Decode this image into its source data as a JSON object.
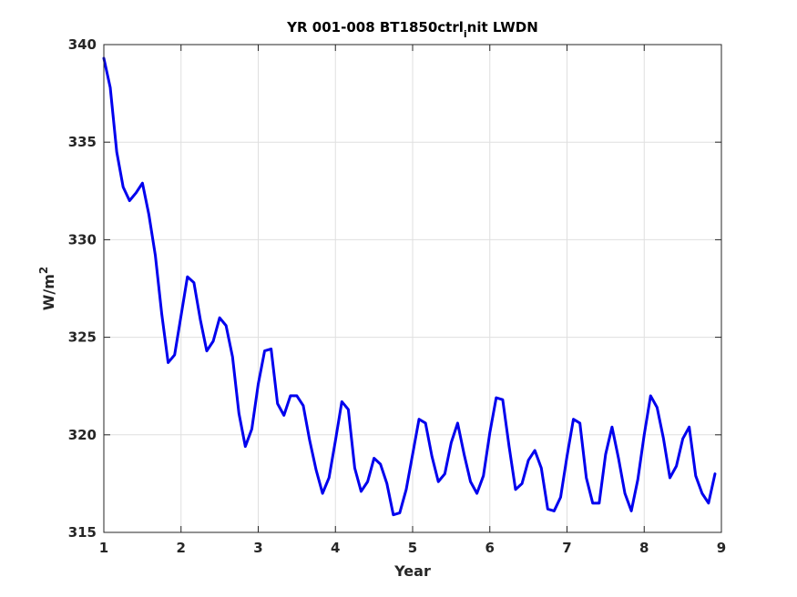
{
  "chart_data": {
    "type": "line",
    "title_main": "YR 001-008 BT1850ctrl",
    "title_sub": "i",
    "title_tail": "nit LWDN",
    "xlabel": "Year",
    "ylabel_main": "W/m",
    "ylabel_sup": "2",
    "xlim": [
      1,
      9
    ],
    "ylim": [
      315,
      340
    ],
    "xticks": [
      "1",
      "2",
      "3",
      "4",
      "5",
      "6",
      "7",
      "8",
      "9"
    ],
    "yticks": [
      "315",
      "320",
      "325",
      "330",
      "335",
      "340"
    ],
    "grid": true,
    "series": [
      {
        "color": "#0000ee",
        "x": [
          1.0,
          1.083,
          1.167,
          1.25,
          1.333,
          1.417,
          1.5,
          1.583,
          1.667,
          1.75,
          1.833,
          1.917,
          2.0,
          2.083,
          2.167,
          2.25,
          2.333,
          2.417,
          2.5,
          2.583,
          2.667,
          2.75,
          2.833,
          2.917,
          3.0,
          3.083,
          3.167,
          3.25,
          3.333,
          3.417,
          3.5,
          3.583,
          3.667,
          3.75,
          3.833,
          3.917,
          4.0,
          4.083,
          4.167,
          4.25,
          4.333,
          4.417,
          4.5,
          4.583,
          4.667,
          4.75,
          4.833,
          4.917,
          5.0,
          5.083,
          5.167,
          5.25,
          5.333,
          5.417,
          5.5,
          5.583,
          5.667,
          5.75,
          5.833,
          5.917,
          6.0,
          6.083,
          6.167,
          6.25,
          6.333,
          6.417,
          6.5,
          6.583,
          6.667,
          6.75,
          6.833,
          6.917,
          7.0,
          7.083,
          7.167,
          7.25,
          7.333,
          7.417,
          7.5,
          7.583,
          7.667,
          7.75,
          7.833,
          7.917,
          8.0,
          8.083,
          8.167,
          8.25,
          8.333,
          8.417,
          8.5,
          8.583,
          8.667,
          8.75,
          8.833,
          8.917
        ],
        "y": [
          339.3,
          337.8,
          334.5,
          332.7,
          332.0,
          332.4,
          332.9,
          331.3,
          329.2,
          326.2,
          323.7,
          324.1,
          326.1,
          328.1,
          327.8,
          325.9,
          324.3,
          324.8,
          326.0,
          325.6,
          324.0,
          321.1,
          319.4,
          320.3,
          322.6,
          324.3,
          324.4,
          321.6,
          321.0,
          322.0,
          322.0,
          321.5,
          319.7,
          318.2,
          317.0,
          317.8,
          319.7,
          321.7,
          321.3,
          318.3,
          317.1,
          317.6,
          318.8,
          318.5,
          317.5,
          315.9,
          316.0,
          317.2,
          319.0,
          320.8,
          320.6,
          318.9,
          317.6,
          318.0,
          319.6,
          320.6,
          319.0,
          317.6,
          317.0,
          317.9,
          320.1,
          321.9,
          321.8,
          319.4,
          317.2,
          317.5,
          318.7,
          319.2,
          318.3,
          316.2,
          316.1,
          316.8,
          318.9,
          320.8,
          320.6,
          317.8,
          316.5,
          316.5,
          319.0,
          320.4,
          318.8,
          317.0,
          316.1,
          317.7,
          320.0,
          322.0,
          321.4,
          319.8,
          317.8,
          318.4,
          319.8,
          320.4,
          317.9,
          317.0,
          316.5,
          318.0
        ]
      }
    ]
  }
}
